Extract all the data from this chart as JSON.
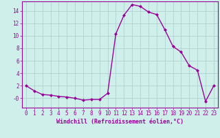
{
  "x": [
    0,
    1,
    2,
    3,
    4,
    5,
    6,
    7,
    8,
    9,
    10,
    11,
    12,
    13,
    14,
    15,
    16,
    17,
    18,
    19,
    20,
    21,
    22,
    23
  ],
  "y": [
    2.0,
    1.2,
    0.6,
    0.5,
    0.3,
    0.2,
    0.0,
    -0.3,
    -0.2,
    -0.2,
    0.8,
    10.3,
    13.3,
    15.0,
    14.7,
    13.8,
    13.4,
    11.0,
    8.3,
    7.4,
    5.2,
    4.5,
    -0.5,
    2.0
  ],
  "line_color": "#990099",
  "marker": "D",
  "markersize": 2.0,
  "linewidth": 1.0,
  "bg_color": "#cff0ea",
  "grid_color": "#aacccc",
  "xlabel": "Windchill (Refroidissement éolien,°C)",
  "xlabel_fontsize": 6,
  "tick_fontsize": 5.5,
  "ylim": [
    -1.5,
    15.5
  ],
  "yticks": [
    0,
    2,
    4,
    6,
    8,
    10,
    12,
    14
  ],
  "ytick_labels": [
    "-0",
    "2",
    "4",
    "6",
    "8",
    "10",
    "12",
    "14"
  ]
}
